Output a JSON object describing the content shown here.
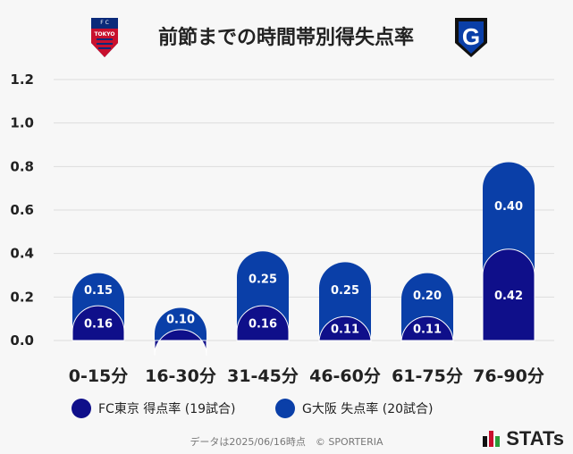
{
  "title": "前節までの時間帯別得失点率",
  "logos": {
    "left_team_text": "TOKYO",
    "left_team_letters": "F C",
    "right_team_letter": "G"
  },
  "colors": {
    "series1": "#0f0f8a",
    "series2": "#0a3fa8",
    "grid": "#dddddd",
    "text": "#222222"
  },
  "chart_data": {
    "type": "bar",
    "categories": [
      "0-15分",
      "16-30分",
      "31-45分",
      "46-60分",
      "61-75分",
      "76-90分"
    ],
    "series": [
      {
        "name": "FC東京 得点率 (19試合)",
        "values": [
          0.16,
          0.05,
          0.16,
          0.11,
          0.11,
          0.42
        ],
        "labels": [
          "0.16",
          "",
          "0.16",
          "0.11",
          "0.11",
          "0.42"
        ]
      },
      {
        "name": "G大阪 失点率 (20試合)",
        "values": [
          0.15,
          0.1,
          0.25,
          0.25,
          0.2,
          0.4
        ],
        "labels": [
          "0.15",
          "0.10",
          "0.25",
          "0.25",
          "0.20",
          "0.40"
        ]
      }
    ],
    "ylim": [
      0,
      1.2
    ],
    "yticks": [
      "0.0",
      "0.2",
      "0.4",
      "0.6",
      "0.8",
      "1.0",
      "1.2"
    ],
    "stacked": true
  },
  "legend": {
    "item1": "FC東京 得点率 (19試合)",
    "item2": "G大阪 失点率 (20試合)"
  },
  "footer": "データは2025/06/16時点　© SPORTERIA",
  "brand": "STATs"
}
